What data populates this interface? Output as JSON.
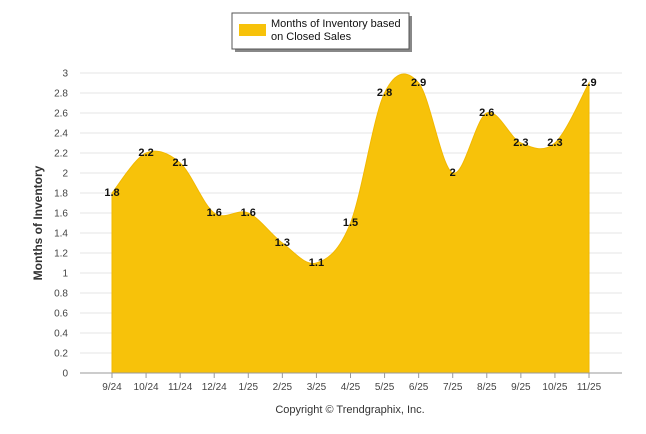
{
  "chart_data": {
    "type": "area",
    "title": "",
    "xlabel": "",
    "ylabel": "Months of Inventory",
    "ylim": [
      0,
      3
    ],
    "yticks": [
      "0",
      "0.2",
      "0.4",
      "0.6",
      "0.8",
      "1",
      "1.2",
      "1.4",
      "1.6",
      "1.8",
      "2",
      "2.2",
      "2.4",
      "2.6",
      "2.8",
      "3"
    ],
    "categories": [
      "9/24",
      "10/24",
      "11/24",
      "12/24",
      "1/25",
      "2/25",
      "3/25",
      "4/25",
      "5/25",
      "6/25",
      "7/25",
      "8/25",
      "9/25",
      "10/25",
      "11/25"
    ],
    "series": [
      {
        "name": "Months of Inventory based on Closed Sales",
        "values": [
          1.8,
          2.2,
          2.1,
          1.6,
          1.6,
          1.3,
          1.1,
          1.5,
          2.8,
          2.9,
          2.0,
          2.6,
          2.3,
          2.3,
          2.9
        ],
        "labels": [
          "1.8",
          "2.2",
          "2.1",
          "1.6",
          "1.6",
          "1.3",
          "1.1",
          "1.5",
          "2.8",
          "2.9",
          "2",
          "2.6",
          "2.3",
          "2.3",
          "2.9"
        ],
        "color": "#f7c20a"
      }
    ],
    "grid": true,
    "legend": {
      "position": "top-center",
      "lines": [
        "Months of Inventory based",
        "on Closed Sales"
      ]
    }
  },
  "footer": {
    "copyright": "Copyright © Trendgraphix, Inc."
  }
}
